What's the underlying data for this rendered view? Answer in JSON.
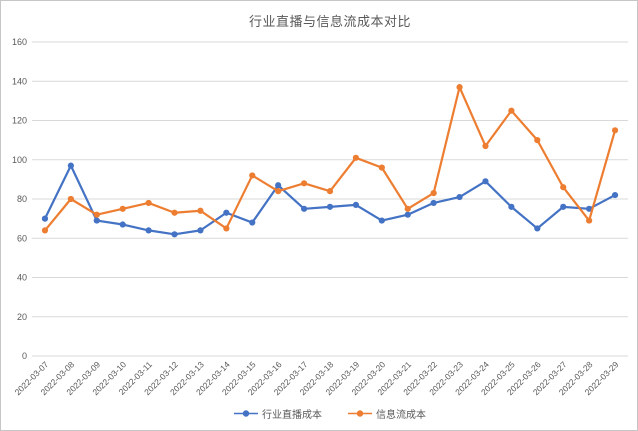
{
  "chart_data": {
    "type": "line",
    "title": "行业直播与信息流成本对比",
    "categories": [
      "2022-03-07",
      "2022-03-08",
      "2022-03-09",
      "2022-03-10",
      "2022-03-11",
      "2022-03-12",
      "2022-03-13",
      "2022-03-14",
      "2022-03-15",
      "2022-03-16",
      "2022-03-17",
      "2022-03-18",
      "2022-03-19",
      "2022-03-20",
      "2022-03-21",
      "2022-03-22",
      "2022-03-23",
      "2022-03-24",
      "2022-03-25",
      "2022-03-26",
      "2022-03-27",
      "2022-03-28",
      "2022-03-29"
    ],
    "series": [
      {
        "name": "行业直播成本",
        "color": "#4472C4",
        "values": [
          70,
          97,
          69,
          67,
          64,
          62,
          64,
          73,
          68,
          87,
          75,
          76,
          77,
          69,
          72,
          78,
          81,
          89,
          76,
          65,
          76,
          75,
          82
        ]
      },
      {
        "name": "信息流成本",
        "color": "#ED7D31",
        "values": [
          64,
          80,
          72,
          75,
          78,
          73,
          74,
          65,
          92,
          84,
          88,
          84,
          101,
          96,
          75,
          83,
          137,
          107,
          125,
          110,
          86,
          69,
          115
        ]
      }
    ],
    "xlabel": "",
    "ylabel": "",
    "ylim": [
      0,
      160
    ],
    "yticks": [
      0,
      20,
      40,
      60,
      80,
      100,
      120,
      140,
      160
    ],
    "grid": true,
    "legend_position": "bottom",
    "colors": {
      "gridline": "#D9D9D9",
      "axis_text": "#595959",
      "title_text": "#595959",
      "background": "#FFFFFF",
      "frame_border": "#C6C6C6"
    }
  }
}
